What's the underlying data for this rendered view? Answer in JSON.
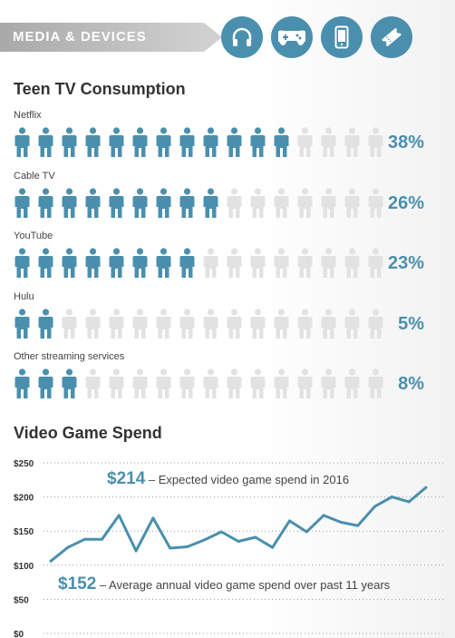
{
  "header": {
    "title": "MEDIA & DEVICES",
    "icons": [
      "headphones-icon",
      "gamepad-icon",
      "phone-icon",
      "ticket-icon"
    ]
  },
  "colors": {
    "accent": "#4a8fae",
    "inactive": "#e2e2e2"
  },
  "tv": {
    "title": "Teen TV Consumption",
    "rows": [
      {
        "label": "Netflix",
        "value": "38%",
        "filled": 12
      },
      {
        "label": "Cable TV",
        "value": "26%",
        "filled": 9
      },
      {
        "label": "YouTube",
        "value": "23%",
        "filled": 8
      },
      {
        "label": "Hulu",
        "value": "5%",
        "filled": 2
      },
      {
        "label": "Other streaming services",
        "value": "8%",
        "filled": 3
      }
    ],
    "total_icons": 16
  },
  "games": {
    "title": "Video Game Spend",
    "annotation_top_value": "$214",
    "annotation_top_text": " – Expected video game spend in 2016",
    "annotation_bottom_value": "$152",
    "annotation_bottom_text": " – Average annual video game spend over past 11 years"
  },
  "chart_data": {
    "type": "line",
    "ylim": [
      0,
      250
    ],
    "ytick_labels": [
      "$250",
      "$200",
      "$150",
      "$100",
      "$50",
      "$0"
    ],
    "yticks": [
      250,
      200,
      150,
      100,
      50,
      0
    ],
    "values": [
      106,
      126,
      138,
      138,
      173,
      121,
      169,
      125,
      127,
      137,
      149,
      135,
      141,
      126,
      165,
      149,
      173,
      163,
      158,
      186,
      200,
      193,
      214
    ],
    "grid": true
  }
}
